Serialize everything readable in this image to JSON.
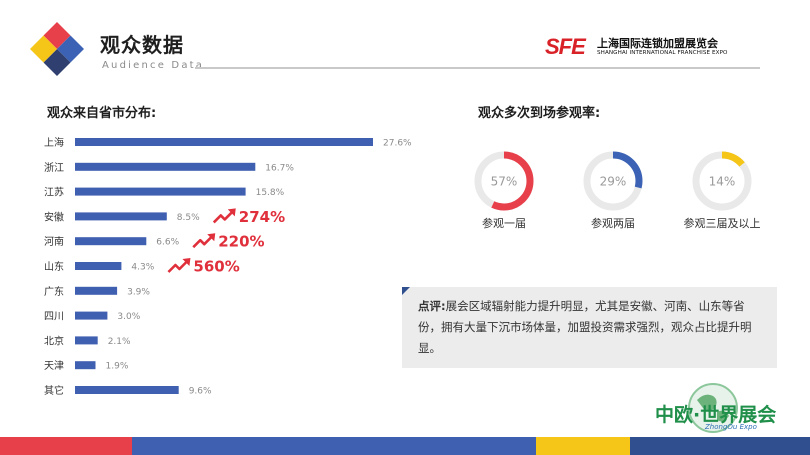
{
  "header": {
    "title": "观众数据",
    "subtitle": "Audience Data",
    "brand": {
      "mark": "SFE",
      "name_cn": "上海国际连锁加盟展览会",
      "name_en": "SHANGHAI INTERNATIONAL FRANCHISE EXPO"
    }
  },
  "sections": {
    "distribution_title": "观众来自省市分布:",
    "repeat_title": "观众多次到场参观率:"
  },
  "chart_data": [
    {
      "type": "bar",
      "orientation": "horizontal",
      "title": "观众来自省市分布:",
      "categories": [
        "上海",
        "浙江",
        "江苏",
        "安徽",
        "河南",
        "山东",
        "广东",
        "四川",
        "北京",
        "天津",
        "其它"
      ],
      "values": [
        27.6,
        16.7,
        15.8,
        8.5,
        6.6,
        4.3,
        3.9,
        3.0,
        2.1,
        1.9,
        9.6
      ],
      "value_labels": [
        "27.6%",
        "16.7%",
        "15.8%",
        "8.5%",
        "6.6%",
        "4.3%",
        "3.9%",
        "3.0%",
        "2.1%",
        "1.9%",
        "9.6%"
      ],
      "unit": "%",
      "bar_color": "#3f5fb0",
      "growth_annotations": [
        {
          "category": "安徽",
          "label": "274%"
        },
        {
          "category": "河南",
          "label": "220%"
        },
        {
          "category": "山东",
          "label": "560%"
        }
      ],
      "growth_color": "#e0303c"
    },
    {
      "type": "pie",
      "style": "donut",
      "title": "观众多次到场参观率:",
      "items": [
        {
          "label": "参观一届",
          "value": 57,
          "text": "57%",
          "color": "#e8404b"
        },
        {
          "label": "参观两届",
          "value": 29,
          "text": "29%",
          "color": "#3b62b5"
        },
        {
          "label": "参观三届及以上",
          "value": 14,
          "text": "14%",
          "color": "#f5c518"
        }
      ],
      "track_color": "#e9e9e9"
    }
  ],
  "comment": {
    "head": "点评:",
    "body": "展会区域辐射能力提升明显，尤其是安徽、河南、山东等省份，拥有大量下沉市场体量，加盟投资需求强烈，观众占比提升明显。"
  },
  "footer": {
    "expo_name": "中欧·世界展会",
    "expo_sub": "ZhongOu Expo"
  },
  "colors": {
    "red": "#e0303c",
    "blue": "#3f5fb0",
    "yellow": "#f5c518",
    "navy": "#2f4f8f",
    "bottom_bar": [
      "#e8404b",
      "#3f5fb0",
      "#f5c518",
      "#2f4f8f"
    ]
  }
}
